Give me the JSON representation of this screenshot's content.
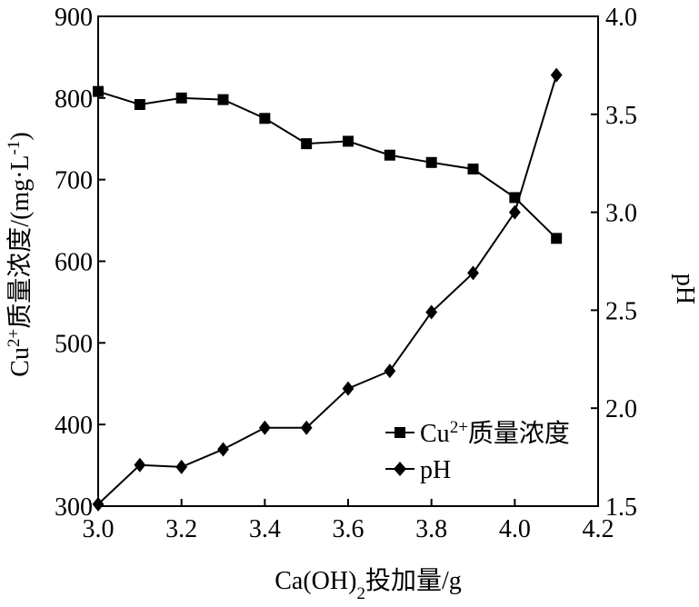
{
  "chart_data": {
    "type": "line",
    "x": [
      3.0,
      3.1,
      3.2,
      3.3,
      3.4,
      3.5,
      3.6,
      3.7,
      3.8,
      3.9,
      4.0,
      4.1
    ],
    "xlabel_main": "Ca(OH)",
    "xlabel_sub": "2",
    "xlabel_rest": "投加量/g",
    "ylabel_main": "Cu",
    "ylabel_sup": "2+",
    "ylabel_rest": "质量浓度/(mg·L",
    "ylabel_sup2": "-1",
    "ylabel_close": ")",
    "y2label": "pH",
    "xlim": [
      3.0,
      4.2
    ],
    "ylim": [
      300,
      900
    ],
    "y2lim": [
      1.5,
      4.0
    ],
    "xticks": [
      "3.0",
      "3.2",
      "3.4",
      "3.6",
      "3.8",
      "4.0",
      "4.2"
    ],
    "yticks": [
      "300",
      "400",
      "500",
      "600",
      "700",
      "800",
      "900"
    ],
    "y2ticks": [
      "1.5",
      "2.0",
      "2.5",
      "3.0",
      "3.5",
      "4.0"
    ],
    "series": [
      {
        "name_main": "Cu",
        "name_sup": "2+",
        "name_rest": "质量浓度",
        "axis": "left",
        "marker": "square",
        "values": [
          808,
          792,
          800,
          798,
          775,
          744,
          747,
          730,
          721,
          713,
          678,
          628
        ]
      },
      {
        "name_main": "pH",
        "axis": "right",
        "marker": "diamond",
        "values": [
          1.51,
          1.71,
          1.7,
          1.79,
          1.9,
          1.9,
          2.1,
          2.19,
          2.49,
          2.69,
          3.0,
          3.7
        ]
      }
    ],
    "grid": false,
    "legend": "bottom-right",
    "colors": {
      "line": "#000000",
      "marker": "#000000"
    }
  }
}
